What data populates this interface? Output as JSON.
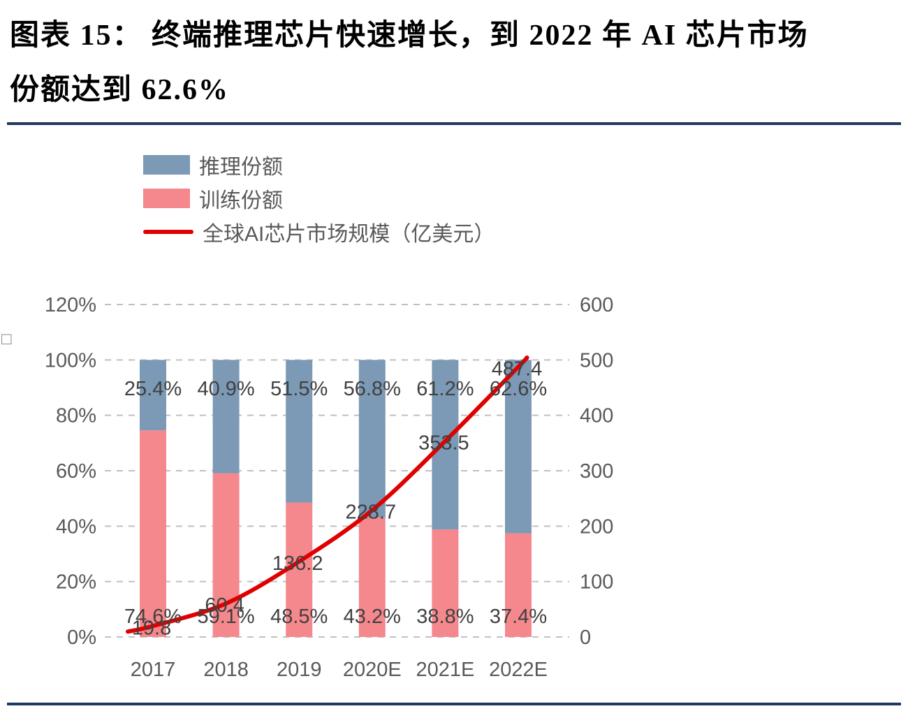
{
  "header": {
    "title_line1": "图表 15：  终端推理芯片快速增长，到 2022 年 AI 芯片市场",
    "title_line2": "份额达到 62.6%"
  },
  "stray_char": "□",
  "colors": {
    "inference_bar": "#7c99b5",
    "training_bar": "#f5888d",
    "market_line": "#e00000",
    "divider": "#1f3864",
    "axis_text": "#595959",
    "data_label_text": "#404040"
  },
  "chart_data": {
    "type": "combo (stacked bar + line)",
    "categories": [
      "2017",
      "2018",
      "2019",
      "2020E",
      "2021E",
      "2022E"
    ],
    "series": [
      {
        "name": "推理份额",
        "type": "bar",
        "axis": "left",
        "color": "#7c99b5",
        "values": [
          25.4,
          40.9,
          51.5,
          56.8,
          61.2,
          62.6
        ],
        "labels": [
          "25.4%",
          "40.9%",
          "51.5%",
          "56.8%",
          "61.2%",
          "62.6%"
        ]
      },
      {
        "name": "训练份额",
        "type": "bar",
        "axis": "left",
        "color": "#f5888d",
        "values": [
          74.6,
          59.1,
          48.5,
          43.2,
          38.8,
          37.4
        ],
        "labels": [
          "74.6%",
          "59.1%",
          "48.5%",
          "43.2%",
          "38.8%",
          "37.4%"
        ]
      },
      {
        "name": "全球AI芯片市场规模（亿美元）",
        "type": "line",
        "axis": "right",
        "color": "#e00000",
        "values": [
          19.8,
          60.4,
          136.2,
          228.7,
          353.5,
          487.4
        ],
        "labels": [
          "19.8",
          "60.4",
          "136.2",
          "228.7",
          "353.5",
          "487.4"
        ]
      }
    ],
    "left_axis": {
      "ticks": [
        "120%",
        "100%",
        "80%",
        "60%",
        "40%",
        "20%",
        "0%"
      ],
      "min": 0,
      "max": 120
    },
    "right_axis": {
      "ticks": [
        "600",
        "500",
        "400",
        "300",
        "200",
        "100",
        "0"
      ],
      "min": 0,
      "max": 600
    },
    "grid": "dashed horizontal",
    "legend_position": "top-left",
    "title": "终端推理芯片快速增长，到 2022 年 AI 芯片市场份额达到 62.6%"
  }
}
